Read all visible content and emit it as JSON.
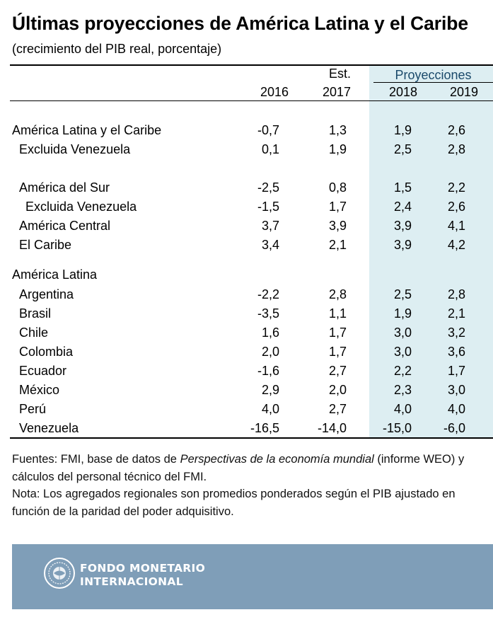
{
  "title": "Últimas proyecciones de América Latina y el Caribe",
  "subtitle": "(crecimiento del PIB real, porcentaje)",
  "header": {
    "est": "Est.",
    "projections": "Proyecciones",
    "years": [
      "2016",
      "2017",
      "2018",
      "2019"
    ]
  },
  "rows": [
    {
      "label": "América Latina y el Caribe",
      "values": [
        "-0,7",
        "1,3",
        "1,9",
        "2,6"
      ]
    },
    {
      "label": "Excluida Venezuela",
      "values": [
        "0,1",
        "1,9",
        "2,5",
        "2,8"
      ]
    },
    {
      "label": "América del Sur",
      "values": [
        "-2,5",
        "0,8",
        "1,5",
        "2,2"
      ]
    },
    {
      "label": "Excluida Venezuela",
      "values": [
        "-1,5",
        "1,7",
        "2,4",
        "2,6"
      ]
    },
    {
      "label": "América Central",
      "values": [
        "3,7",
        "3,9",
        "3,9",
        "4,1"
      ]
    },
    {
      "label": "El Caribe",
      "values": [
        "3,4",
        "2,1",
        "3,9",
        "4,2"
      ]
    },
    {
      "label": "América Latina",
      "values": [
        "",
        "",
        "",
        ""
      ]
    },
    {
      "label": "Argentina",
      "values": [
        "-2,2",
        "2,8",
        "2,5",
        "2,8"
      ]
    },
    {
      "label": "Brasil",
      "values": [
        "-3,5",
        "1,1",
        "1,9",
        "2,1"
      ]
    },
    {
      "label": "Chile",
      "values": [
        "1,6",
        "1,7",
        "3,0",
        "3,2"
      ]
    },
    {
      "label": "Colombia",
      "values": [
        "2,0",
        "1,7",
        "3,0",
        "3,6"
      ]
    },
    {
      "label": "Ecuador",
      "values": [
        "-1,6",
        "2,7",
        "2,2",
        "1,7"
      ]
    },
    {
      "label": "México",
      "values": [
        "2,9",
        "2,0",
        "2,3",
        "3,0"
      ]
    },
    {
      "label": "Perú",
      "values": [
        "4,0",
        "2,7",
        "4,0",
        "4,0"
      ]
    },
    {
      "label": "Venezuela",
      "values": [
        "-16,5",
        "-14,0",
        "-15,0",
        "-6,0"
      ]
    }
  ],
  "footnotes": {
    "sources_prefix": "Fuentes: FMI, base de datos de ",
    "sources_italic": "Perspectivas de la economía mundial",
    "sources_suffix": " (informe WEO) y cálculos del personal técnico del FMI.",
    "note": "Nota: Los agregados regionales son promedios ponderados según el PIB ajustado en función de la paridad del poder adquisitivo."
  },
  "brand": {
    "line1": "FONDO MONETARIO",
    "line2": "INTERNACIONAL",
    "bar_color": "#7f9eb8",
    "projection_shade": "#ddeef2",
    "seal_icon": "imf-seal-icon"
  }
}
